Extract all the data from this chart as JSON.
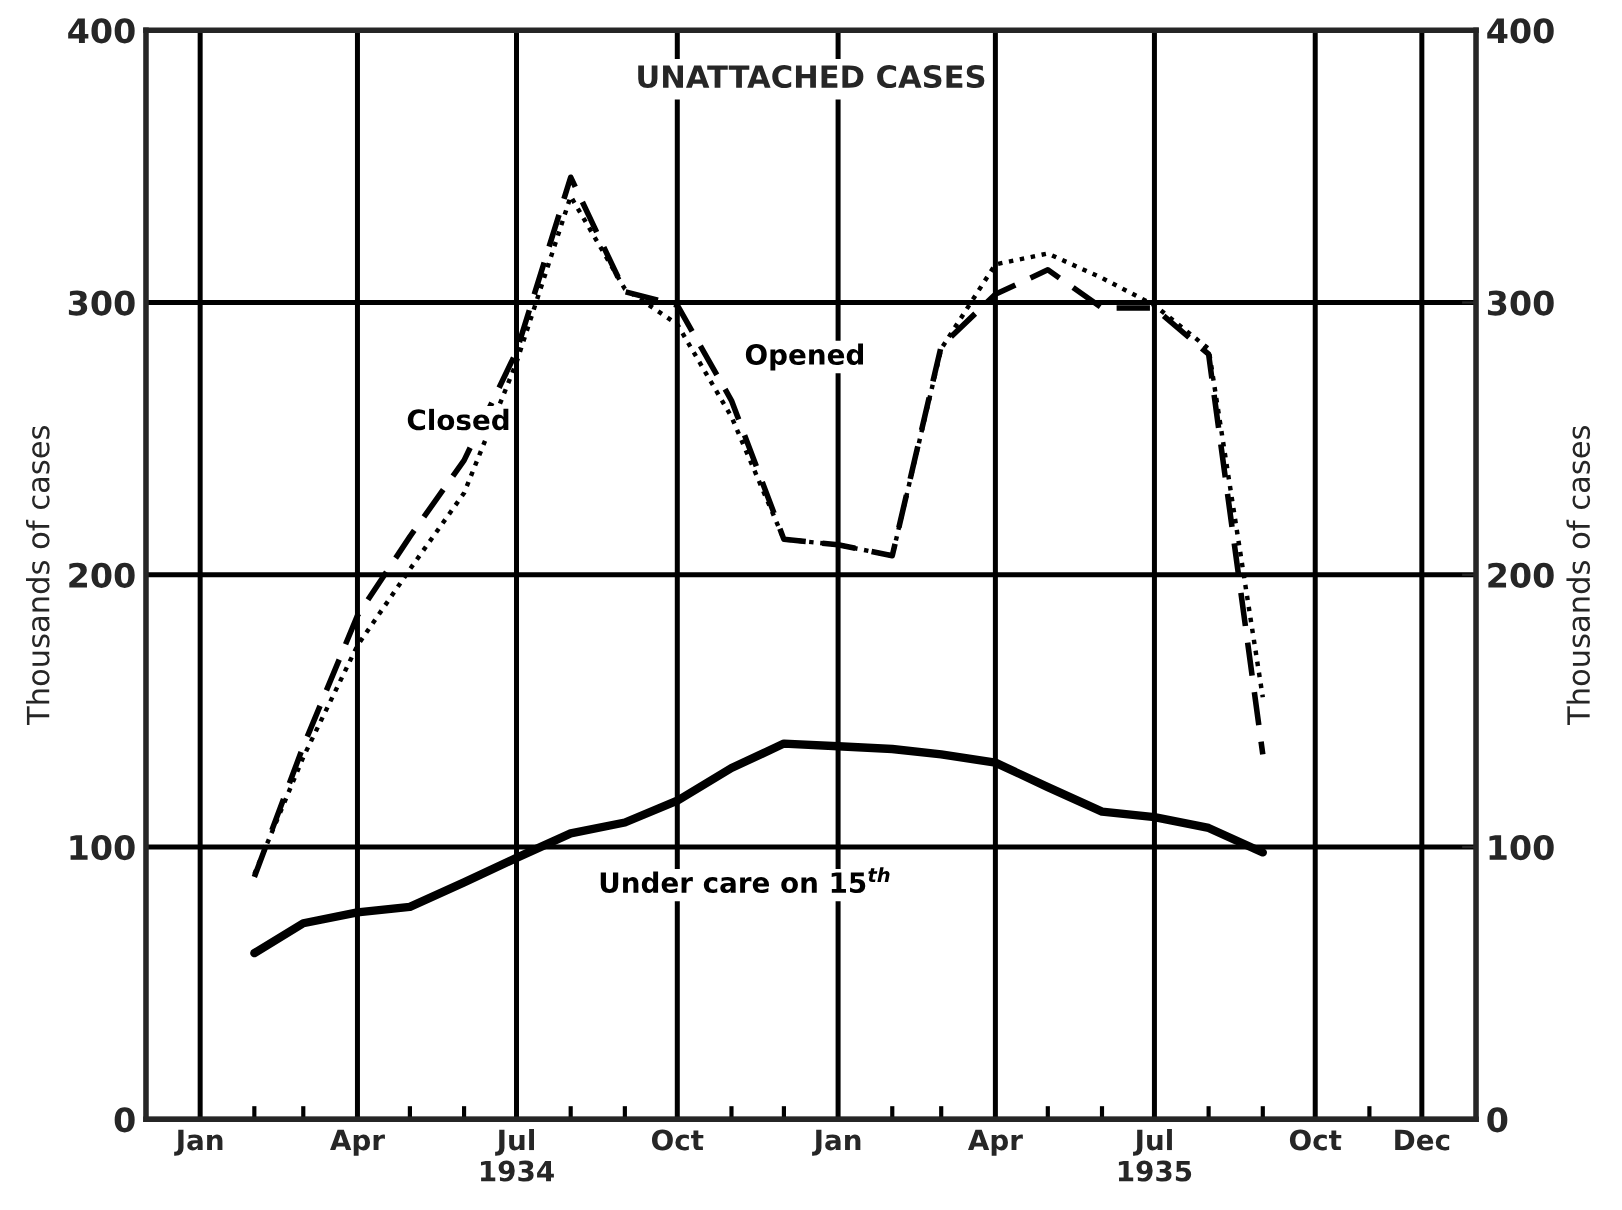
{
  "chart_data": {
    "type": "line",
    "title": "UNATTACHED CASES",
    "ylabel": "Thousands of cases",
    "y2label": "Thousands of cases",
    "x": [
      "1934-02",
      "1934-03",
      "1934-04",
      "1934-05",
      "1934-06",
      "1934-07",
      "1934-08",
      "1934-09",
      "1934-10",
      "1934-11",
      "1934-12",
      "1935-01",
      "1935-02",
      "1935-03",
      "1935-04",
      "1935-05",
      "1935-06",
      "1935-07",
      "1935-08",
      "1935-09"
    ],
    "series": [
      {
        "name": "Opened",
        "color": "#000000",
        "line_style": "dashed",
        "values": [
          89,
          137,
          185,
          214,
          242,
          282,
          346,
          304,
          299,
          264,
          213,
          211,
          207,
          284,
          303,
          312,
          298,
          298,
          281,
          134
        ]
      },
      {
        "name": "Closed",
        "color": "#000000",
        "line_style": "dotted",
        "values": [
          90,
          133,
          174,
          202,
          230,
          278,
          339,
          305,
          292,
          258,
          213,
          211,
          207,
          283,
          314,
          318,
          309,
          299,
          283,
          155
        ]
      },
      {
        "name": "Under care on 15$^{th}$",
        "color": "#000000",
        "line_style": "solid",
        "values": [
          61,
          72,
          76,
          78,
          87,
          96,
          105,
          109,
          117,
          129,
          138,
          137,
          136,
          134,
          131,
          122,
          113,
          111,
          107,
          98
        ]
      }
    ],
    "xlim": [
      "1933-12",
      "1936-01"
    ],
    "xticks": [
      {
        "value": "1934-01",
        "label": "Jan"
      },
      {
        "value": "1934-02",
        "label": null
      },
      {
        "value": "1934-03",
        "label": null
      },
      {
        "value": "1934-04",
        "label": "Apr"
      },
      {
        "value": "1934-05",
        "label": null
      },
      {
        "value": "1934-06",
        "label": null
      },
      {
        "value": "1934-07",
        "label": "Jul\n1934"
      },
      {
        "value": "1934-08",
        "label": null
      },
      {
        "value": "1934-09",
        "label": null
      },
      {
        "value": "1934-10",
        "label": "Oct"
      },
      {
        "value": "1934-11",
        "label": null
      },
      {
        "value": "1934-12",
        "label": null
      },
      {
        "value": "1935-01",
        "label": "Jan"
      },
      {
        "value": "1935-02",
        "label": null
      },
      {
        "value": "1935-03",
        "label": null
      },
      {
        "value": "1935-04",
        "label": "Apr"
      },
      {
        "value": "1935-05",
        "label": null
      },
      {
        "value": "1935-06",
        "label": null
      },
      {
        "value": "1935-07",
        "label": "Jul\n1935"
      },
      {
        "value": "1935-08",
        "label": null
      },
      {
        "value": "1935-09",
        "label": null
      },
      {
        "value": "1935-10",
        "label": "Oct"
      },
      {
        "value": "1935-11",
        "label": null
      },
      {
        "value": "1935-12",
        "label": "Dec"
      }
    ],
    "ylim": [
      0,
      400
    ],
    "yticks": [
      0,
      100,
      200,
      300,
      400
    ],
    "y2lim": [
      0,
      400
    ],
    "y2ticks": [
      0,
      100,
      200,
      300,
      400
    ],
    "grid": true,
    "legend": false,
    "marker": "none"
  }
}
